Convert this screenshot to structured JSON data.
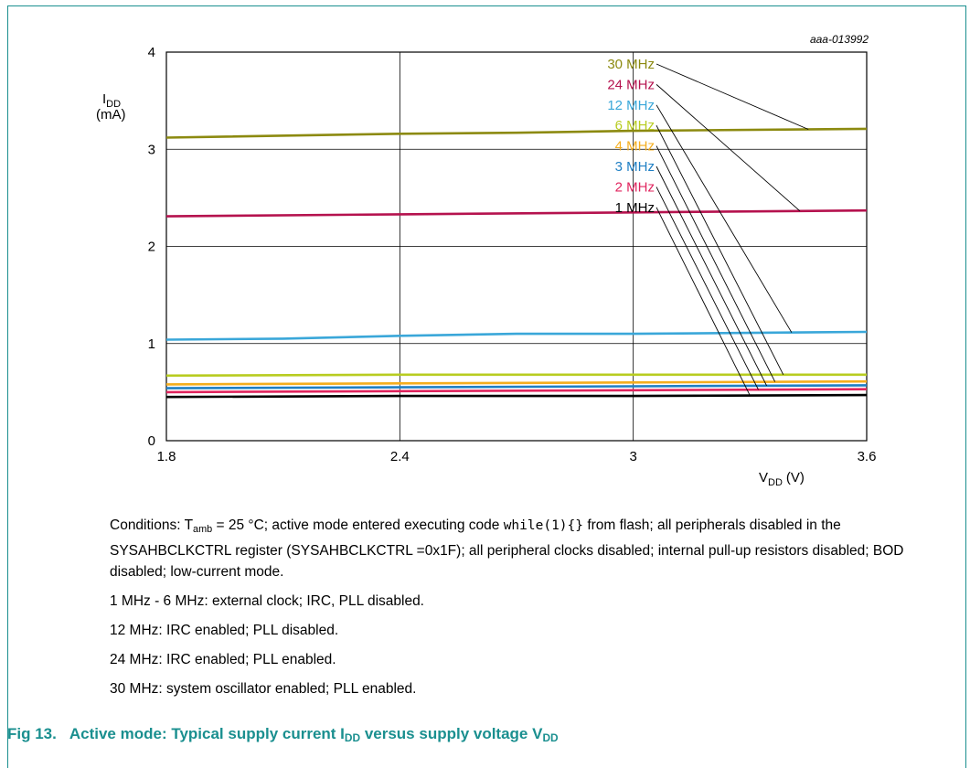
{
  "chart_data": {
    "type": "line",
    "id_label": "aaa-013992",
    "ylabel_main": "I",
    "ylabel_sub": "DD",
    "ylabel_unit": "(mA)",
    "xlabel_main": "V",
    "xlabel_sub": "DD",
    "xlabel_unit": "(V)",
    "xlim": [
      1.8,
      3.6
    ],
    "ylim": [
      0,
      4
    ],
    "x_ticks": [
      {
        "value": 1.8,
        "label": "1.8"
      },
      {
        "value": 2.4,
        "label": "2.4"
      },
      {
        "value": 3.0,
        "label": "3"
      },
      {
        "value": 3.6,
        "label": "3.6"
      }
    ],
    "y_ticks": [
      {
        "value": 0,
        "label": "0"
      },
      {
        "value": 1,
        "label": "1"
      },
      {
        "value": 2,
        "label": "2"
      },
      {
        "value": 3,
        "label": "3"
      },
      {
        "value": 4,
        "label": "4"
      }
    ],
    "grid": true,
    "legend_placement": "top-right",
    "series": [
      {
        "name": "30 MHz",
        "color": "#8c8a10",
        "x": [
          1.8,
          2.4,
          2.7,
          3.0,
          3.6
        ],
        "y": [
          3.12,
          3.16,
          3.17,
          3.19,
          3.21
        ]
      },
      {
        "name": "24 MHz",
        "color": "#b5124e",
        "x": [
          1.8,
          2.4,
          3.0,
          3.6
        ],
        "y": [
          2.31,
          2.33,
          2.35,
          2.37
        ]
      },
      {
        "name": "12 MHz",
        "color": "#3aa7d9",
        "x": [
          1.8,
          2.1,
          2.4,
          2.7,
          3.0,
          3.6
        ],
        "y": [
          1.04,
          1.05,
          1.08,
          1.1,
          1.1,
          1.12
        ]
      },
      {
        "name": "6 MHz",
        "color": "#b8cc20",
        "x": [
          1.8,
          2.4,
          3.0,
          3.6
        ],
        "y": [
          0.67,
          0.68,
          0.68,
          0.68
        ]
      },
      {
        "name": "4 MHz",
        "color": "#f5ae1e",
        "x": [
          1.8,
          2.4,
          3.0,
          3.6
        ],
        "y": [
          0.58,
          0.59,
          0.6,
          0.61
        ]
      },
      {
        "name": "3 MHz",
        "color": "#1f7fc4",
        "x": [
          1.8,
          2.4,
          3.0,
          3.6
        ],
        "y": [
          0.54,
          0.55,
          0.56,
          0.57
        ]
      },
      {
        "name": "2 MHz",
        "color": "#e0245e",
        "x": [
          1.8,
          2.4,
          3.0,
          3.6
        ],
        "y": [
          0.5,
          0.51,
          0.52,
          0.53
        ]
      },
      {
        "name": "1 MHz",
        "color": "#000000",
        "x": [
          1.8,
          2.4,
          3.0,
          3.6
        ],
        "y": [
          0.45,
          0.46,
          0.46,
          0.47
        ]
      }
    ]
  },
  "notes": {
    "conditions_1": "Conditions: T",
    "conditions_sub": "amb",
    "conditions_2": " = 25 °C; active mode entered executing code ",
    "conditions_code": "while(1){}",
    "conditions_3": " from flash; all peripherals disabled in the SYSAHBCLKCTRL register (SYSAHBCLKCTRL =0x1F); all peripheral clocks disabled; internal pull-up resistors disabled; BOD disabled; low-current mode.",
    "line1": "1 MHz - 6 MHz: external clock; IRC, PLL disabled.",
    "line2": "12 MHz: IRC enabled; PLL disabled.",
    "line3": "24 MHz: IRC enabled; PLL enabled.",
    "line4": "30 MHz: system oscillator enabled; PLL enabled."
  },
  "caption": {
    "number": "Fig 13.",
    "text_1": "Active mode: Typical supply current I",
    "sub_1": "DD",
    "text_2": " versus supply voltage V",
    "sub_2": "DD"
  }
}
